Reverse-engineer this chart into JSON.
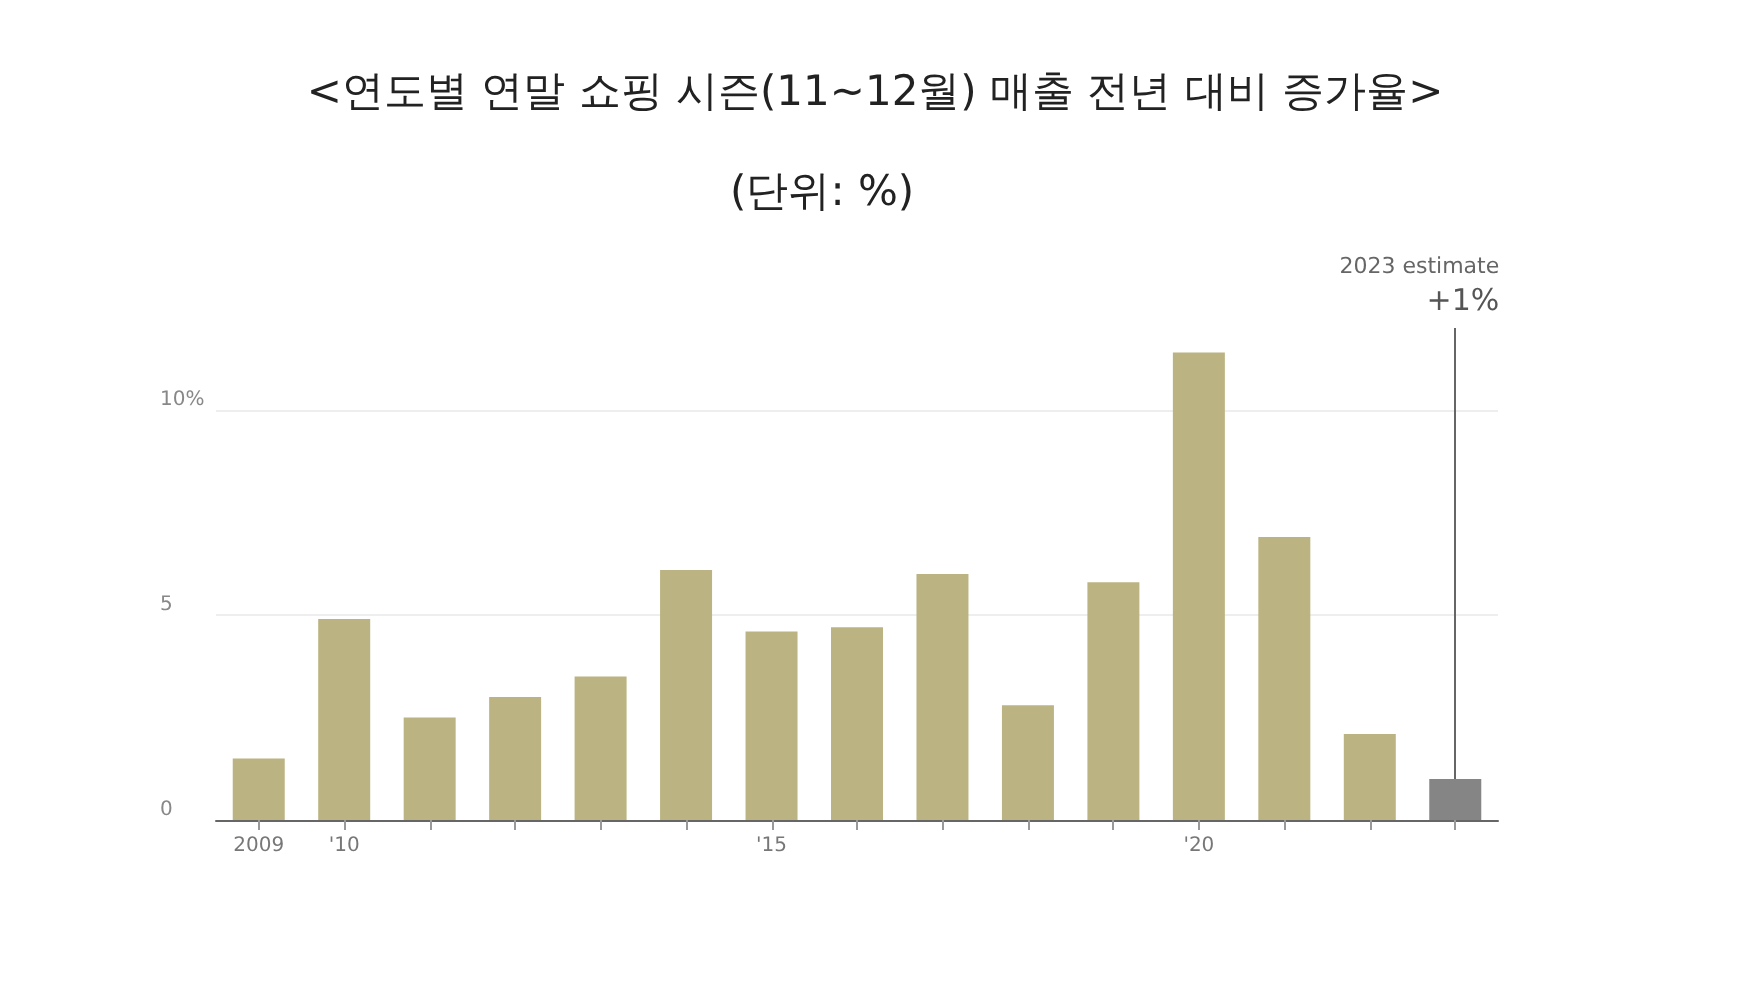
{
  "chart_data": {
    "type": "bar",
    "title": "<연도별 연말 쇼핑 시즌(11~12월) 매출 전년 대비 증가율>",
    "subtitle": "(단위: %)",
    "categories": [
      "2009",
      "'10",
      null,
      null,
      null,
      null,
      "'15",
      null,
      null,
      null,
      null,
      "'20",
      null,
      null,
      null
    ],
    "values": [
      1.5,
      4.9,
      2.5,
      3.0,
      3.5,
      6.1,
      4.6,
      4.7,
      6.0,
      2.8,
      5.8,
      11.4,
      6.9,
      2.1,
      1.0
    ],
    "colors": [
      "#bbb482",
      "#bbb482",
      "#bbb482",
      "#bbb482",
      "#bbb482",
      "#bbb482",
      "#bbb482",
      "#bbb482",
      "#bbb482",
      "#bbb482",
      "#bbb482",
      "#bbb482",
      "#bbb482",
      "#bbb482",
      "#858585"
    ],
    "value_labels": [
      null,
      null,
      null,
      null,
      null,
      null,
      null,
      null,
      null,
      null,
      null,
      null,
      null,
      null,
      "+1%"
    ],
    "annotations": [
      "2023 estimate"
    ],
    "ylim": [
      0,
      12
    ],
    "yticks": [
      0,
      5,
      {
        "value": 10,
        "label": "10%"
      }
    ],
    "grid": "y"
  }
}
